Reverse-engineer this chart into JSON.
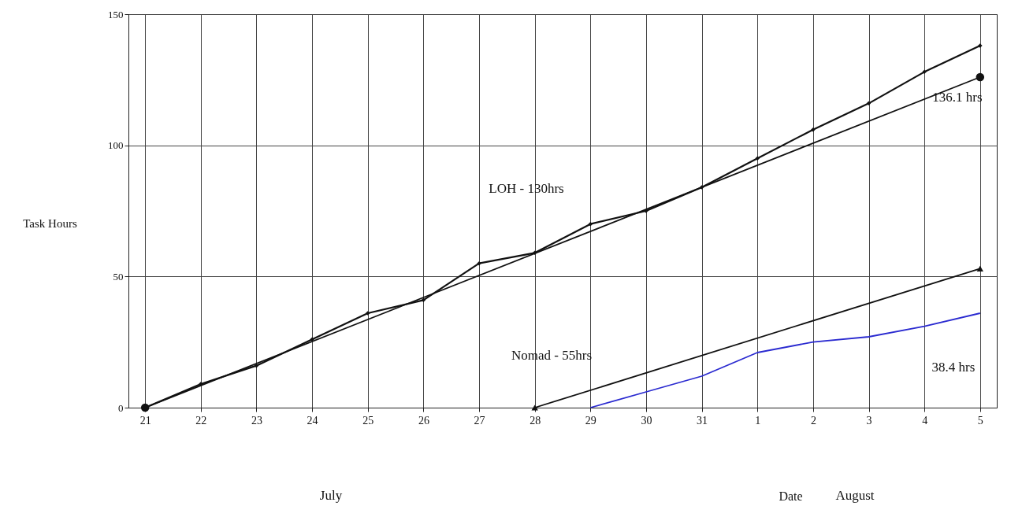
{
  "chart_data": {
    "type": "line",
    "xlabel": "Date",
    "ylabel": "Task Hours",
    "categories": [
      "21",
      "22",
      "23",
      "24",
      "25",
      "26",
      "27",
      "28",
      "29",
      "30",
      "31",
      "1",
      "2",
      "3",
      "4",
      "5"
    ],
    "series": [
      {
        "color": "#111111",
        "marker": "diamond",
        "values": [
          0,
          9,
          16,
          26,
          36,
          41,
          55,
          59,
          70,
          75,
          84,
          95,
          106,
          116,
          128,
          138
        ]
      },
      {
        "color": "#111111",
        "marker": "circle",
        "x": [
          "21",
          "5"
        ],
        "values": [
          0,
          126
        ]
      },
      {
        "color": "#111111",
        "marker": "triangle",
        "x": [
          "28",
          "5"
        ],
        "values": [
          0,
          53
        ]
      },
      {
        "color": "#2a2ad0",
        "marker": "none",
        "x": [
          "29",
          "30",
          "31",
          "1",
          "2",
          "3",
          "4",
          "5"
        ],
        "values": [
          0,
          6,
          12,
          21,
          25,
          27,
          31,
          36
        ]
      }
    ],
    "ylim": [
      0,
      150
    ],
    "yticks": [
      0,
      50,
      100,
      150
    ],
    "grid": true,
    "annotations": [
      "LOH - 130hrs",
      "Nomad - 55hrs",
      "136.1 hrs",
      "38.4 hrs",
      "July",
      "August"
    ]
  }
}
